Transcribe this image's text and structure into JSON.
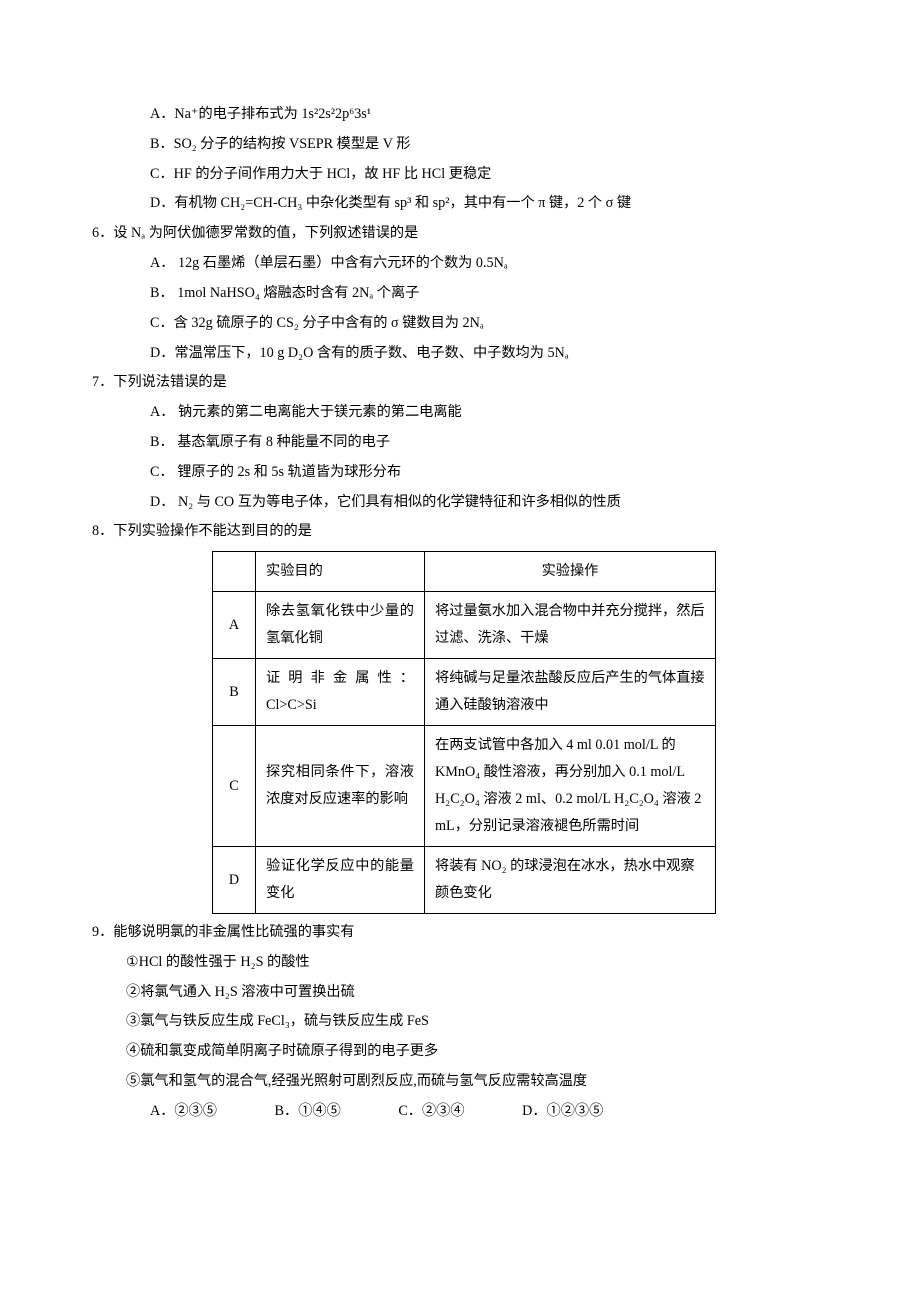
{
  "q5opts": {
    "A": "A．Na⁺的电子排布式为 1s²2s²2p⁶3s¹",
    "B": "B．SO₂ 分子的结构按 VSEPR 模型是 V 形",
    "C": "C．HF 的分子间作用力大于 HCl，故 HF 比 HCl 更稳定",
    "D": "D．有机物 CH₂=CH-CH₃ 中杂化类型有 sp³ 和 sp²，其中有一个 π 键，2 个 σ 键"
  },
  "q6": {
    "stem": "6．设 Nₐ 为阿伏伽德罗常数的值，下列叙述错误的是",
    "A": "A．  12g 石墨烯（单层石墨）中含有六元环的个数为 0.5Nₐ",
    "B": "B．  1mol NaHSO₄ 熔融态时含有 2Nₐ 个离子",
    "C": "C．含 32g 硫原子的 CS₂ 分子中含有的 σ 键数目为 2Nₐ",
    "D": "D．常温常压下，10 g D₂O 含有的质子数、电子数、中子数均为 5Nₐ"
  },
  "q7": {
    "stem": "7．下列说法错误的是",
    "A": "A．  钠元素的第二电离能大于镁元素的第二电离能",
    "B": "B．  基态氧原子有 8 种能量不同的电子",
    "C": "C．  锂原子的 2s 和 5s 轨道皆为球形分布",
    "D": "D．  N₂ 与 CO 互为等电子体，它们具有相似的化学键特征和许多相似的性质"
  },
  "q8": {
    "stem": "8．下列实验操作不能达到目的的是",
    "head": {
      "purpose": "实验目的",
      "operation": "实验操作"
    },
    "rows": [
      {
        "k": "A",
        "p": "除去氢氧化铁中少量的氢氧化铜",
        "o": "将过量氨水加入混合物中并充分搅拌，然后过滤、洗涤、干燥"
      },
      {
        "k": "B",
        "p": "证 明 非 金 属 性 ：Cl>C>Si",
        "o": "将纯碱与足量浓盐酸反应后产生的气体直接通入硅酸钠溶液中"
      },
      {
        "k": "C",
        "p": "探究相同条件下，溶液浓度对反应速率的影响",
        "o": "在两支试管中各加入 4 ml  0.01 mol/L 的KMnO₄ 酸性溶液，再分别加入 0.1 mol/L H₂C₂O₄ 溶液 2 ml、0.2 mol/L H₂C₂O₄ 溶液 2 mL，分别记录溶液褪色所需时间"
      },
      {
        "k": "D",
        "p": "验证化学反应中的能量变化",
        "o": "将装有 NO₂ 的球浸泡在冰水，热水中观察颜色变化"
      }
    ]
  },
  "q9": {
    "stem": "9．能够说明氯的非金属性比硫强的事实有",
    "i1": "①HCl 的酸性强于 H₂S 的酸性",
    "i2": "②将氯气通入 H₂S 溶液中可置换出硫",
    "i3": "③氯气与铁反应生成 FeCl₃，硫与铁反应生成 FeS",
    "i4": "④硫和氯变成简单阴离子时硫原子得到的电子更多",
    "i5": "⑤氯气和氢气的混合气,经强光照射可剧烈反应,而硫与氢气反应需较高温度",
    "choices": {
      "A": "A．②③⑤",
      "B": "B．①④⑤",
      "C": "C．②③④",
      "D": "D．①②③⑤"
    }
  }
}
